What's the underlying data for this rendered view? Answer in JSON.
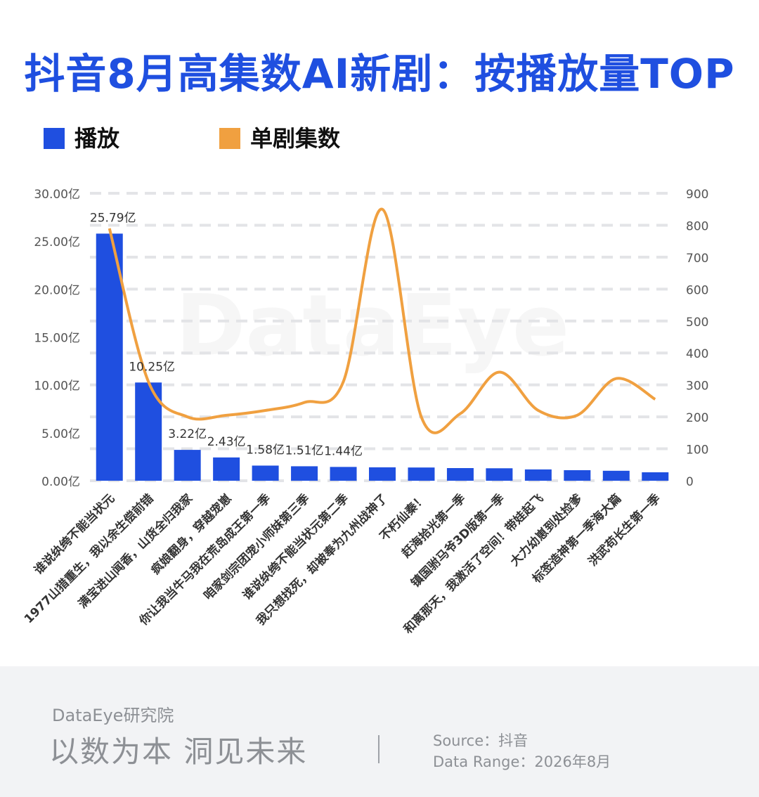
{
  "title": "抖音8月高集数AI新剧：按播放量TOP",
  "legend": [
    {
      "label": "播放",
      "color": "#1f4fe0"
    },
    {
      "label": "单剧集数",
      "color": "#f0a040"
    }
  ],
  "chart_data": {
    "type": "bar",
    "categories": [
      "谁说纨绔不能当状元",
      "1977山猎重生，我以余生偿前错",
      "满宝进山闻香，山货全归我家",
      "疯娘翻身，穿越宠崽",
      "你让我当牛马我在荒岛成王第一季",
      "咱家剑宗团宠小师妹第三季",
      "谁说纨绔不能当状元第二季",
      "我只想找死，却被奉为九州战神了",
      "不朽仙秦！",
      "赶海拾光第一季",
      "镇国驸马爷3D版第一季",
      "和离那天，我激活了空间！带娃起飞",
      "大力幼崽到处捡爹",
      "标签造神第一季海大篇",
      "洪武苟长生第一季"
    ],
    "series": [
      {
        "name": "播放",
        "axis": "left",
        "color": "#1f4fe0",
        "values": [
          25.79,
          10.25,
          3.22,
          2.43,
          1.58,
          1.51,
          1.44,
          1.4,
          1.38,
          1.32,
          1.3,
          1.18,
          1.1,
          1.04,
          0.88
        ]
      },
      {
        "name": "单剧集数",
        "axis": "right",
        "color": "#f0a040",
        "values": [
          790,
          310,
          200,
          205,
          220,
          245,
          310,
          850,
          200,
          210,
          340,
          220,
          205,
          320,
          255
        ]
      }
    ],
    "data_labels": [
      "25.79亿",
      "10.25亿",
      "3.22亿",
      "2.43亿",
      "1.58亿",
      "1.51亿",
      "1.44亿"
    ],
    "y_left": {
      "range": [
        0,
        30
      ],
      "ticks": [
        0,
        5,
        10,
        15,
        20,
        25,
        30
      ],
      "tick_labels": [
        "0.00亿",
        "5.00亿",
        "10.00亿",
        "15.00亿",
        "20.00亿",
        "25.00亿",
        "30.00亿"
      ]
    },
    "y_right": {
      "range": [
        0,
        900
      ],
      "ticks": [
        0,
        100,
        200,
        300,
        400,
        500,
        600,
        700,
        800,
        900
      ],
      "tick_labels": [
        "0",
        "100",
        "200",
        "300",
        "400",
        "500",
        "600",
        "700",
        "800",
        "900"
      ]
    },
    "grid": "horizontal-dashed",
    "legend_position": "top-left",
    "watermark": "DataEye"
  },
  "footer": {
    "org": "DataEye研究院",
    "slogan": "以数为本 洞见未来",
    "source": "Source：抖音",
    "data_range": "Data Range：2026年8月"
  }
}
